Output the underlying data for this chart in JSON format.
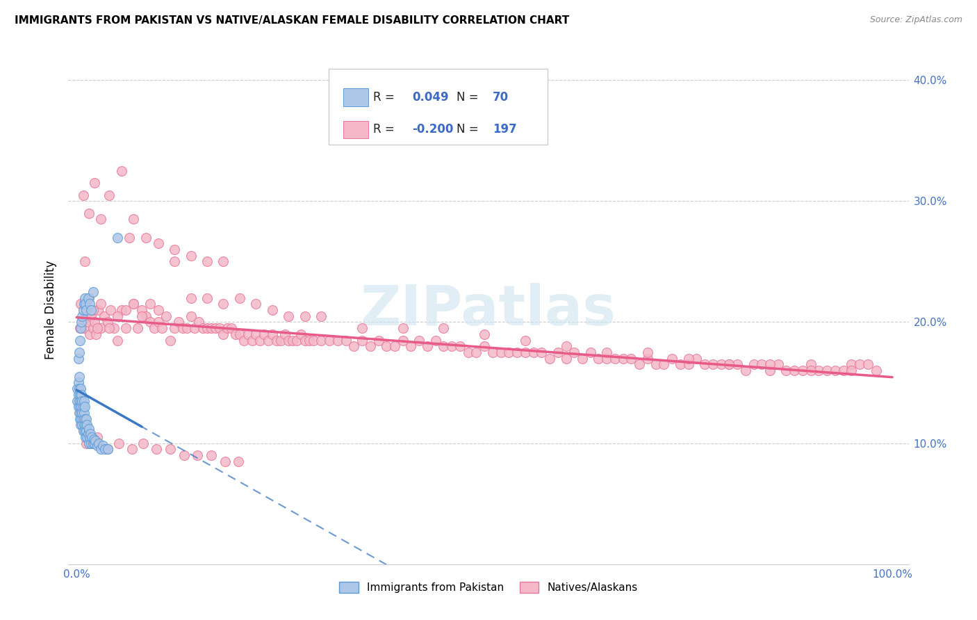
{
  "title": "IMMIGRANTS FROM PAKISTAN VS NATIVE/ALASKAN FEMALE DISABILITY CORRELATION CHART",
  "source": "Source: ZipAtlas.com",
  "ylabel": "Female Disability",
  "xlim": [
    -0.01,
    1.02
  ],
  "ylim": [
    0.0,
    0.42
  ],
  "x_tick_positions": [
    0.0,
    0.1,
    0.2,
    0.3,
    0.4,
    0.5,
    0.6,
    0.7,
    0.8,
    0.9,
    1.0
  ],
  "x_tick_labels": [
    "0.0%",
    "",
    "",
    "",
    "",
    "",
    "",
    "",
    "",
    "",
    "100.0%"
  ],
  "y_tick_positions": [
    0.1,
    0.2,
    0.3,
    0.4
  ],
  "y_tick_labels": [
    "10.0%",
    "20.0%",
    "30.0%",
    "40.0%"
  ],
  "blue_R": 0.049,
  "blue_N": 70,
  "pink_R": -0.2,
  "pink_N": 197,
  "blue_color": "#aec6e8",
  "pink_color": "#f4b8c8",
  "blue_edge_color": "#5b9bd5",
  "pink_edge_color": "#e8789a",
  "blue_line_color": "#3b78c4",
  "pink_line_color": "#e85a8a",
  "legend_label_blue": "Immigrants from Pakistan",
  "legend_label_pink": "Natives/Alaskans",
  "watermark": "ZIPatlas",
  "blue_scatter_x": [
    0.001,
    0.001,
    0.002,
    0.002,
    0.002,
    0.003,
    0.003,
    0.003,
    0.003,
    0.004,
    0.004,
    0.004,
    0.005,
    0.005,
    0.005,
    0.005,
    0.006,
    0.006,
    0.006,
    0.007,
    0.007,
    0.007,
    0.008,
    0.008,
    0.008,
    0.009,
    0.009,
    0.009,
    0.01,
    0.01,
    0.01,
    0.011,
    0.011,
    0.012,
    0.012,
    0.013,
    0.013,
    0.014,
    0.015,
    0.015,
    0.016,
    0.017,
    0.018,
    0.019,
    0.02,
    0.021,
    0.022,
    0.023,
    0.025,
    0.027,
    0.03,
    0.032,
    0.035,
    0.038,
    0.002,
    0.003,
    0.004,
    0.005,
    0.006,
    0.007,
    0.008,
    0.009,
    0.01,
    0.011,
    0.012,
    0.014,
    0.016,
    0.018,
    0.02,
    0.05
  ],
  "blue_scatter_y": [
    0.135,
    0.145,
    0.13,
    0.14,
    0.15,
    0.125,
    0.135,
    0.145,
    0.155,
    0.12,
    0.13,
    0.14,
    0.115,
    0.125,
    0.135,
    0.145,
    0.12,
    0.13,
    0.14,
    0.115,
    0.125,
    0.135,
    0.11,
    0.12,
    0.13,
    0.115,
    0.125,
    0.135,
    0.11,
    0.12,
    0.13,
    0.105,
    0.115,
    0.11,
    0.12,
    0.105,
    0.115,
    0.108,
    0.1,
    0.112,
    0.105,
    0.108,
    0.1,
    0.105,
    0.1,
    0.103,
    0.1,
    0.102,
    0.098,
    0.1,
    0.095,
    0.098,
    0.095,
    0.095,
    0.17,
    0.175,
    0.185,
    0.195,
    0.2,
    0.205,
    0.21,
    0.215,
    0.22,
    0.215,
    0.21,
    0.22,
    0.215,
    0.21,
    0.225,
    0.27
  ],
  "pink_scatter_x": [
    0.004,
    0.006,
    0.008,
    0.01,
    0.012,
    0.014,
    0.016,
    0.018,
    0.02,
    0.022,
    0.024,
    0.026,
    0.03,
    0.034,
    0.038,
    0.042,
    0.046,
    0.05,
    0.055,
    0.06,
    0.065,
    0.07,
    0.075,
    0.08,
    0.085,
    0.09,
    0.095,
    0.1,
    0.105,
    0.11,
    0.115,
    0.12,
    0.125,
    0.13,
    0.135,
    0.14,
    0.145,
    0.15,
    0.155,
    0.16,
    0.165,
    0.17,
    0.175,
    0.18,
    0.185,
    0.19,
    0.195,
    0.2,
    0.205,
    0.21,
    0.215,
    0.22,
    0.225,
    0.23,
    0.235,
    0.24,
    0.245,
    0.25,
    0.255,
    0.26,
    0.265,
    0.27,
    0.275,
    0.28,
    0.285,
    0.29,
    0.3,
    0.31,
    0.32,
    0.33,
    0.34,
    0.35,
    0.36,
    0.37,
    0.38,
    0.39,
    0.4,
    0.41,
    0.42,
    0.43,
    0.44,
    0.45,
    0.46,
    0.47,
    0.48,
    0.49,
    0.5,
    0.51,
    0.52,
    0.53,
    0.54,
    0.55,
    0.56,
    0.57,
    0.58,
    0.59,
    0.6,
    0.61,
    0.62,
    0.63,
    0.64,
    0.65,
    0.66,
    0.67,
    0.68,
    0.69,
    0.7,
    0.71,
    0.72,
    0.73,
    0.74,
    0.75,
    0.76,
    0.77,
    0.78,
    0.79,
    0.8,
    0.81,
    0.82,
    0.83,
    0.84,
    0.85,
    0.86,
    0.87,
    0.88,
    0.89,
    0.9,
    0.91,
    0.92,
    0.93,
    0.94,
    0.95,
    0.96,
    0.97,
    0.98,
    0.005,
    0.01,
    0.015,
    0.02,
    0.025,
    0.03,
    0.04,
    0.05,
    0.06,
    0.07,
    0.08,
    0.09,
    0.1,
    0.12,
    0.14,
    0.16,
    0.18,
    0.2,
    0.22,
    0.24,
    0.26,
    0.28,
    0.3,
    0.35,
    0.4,
    0.45,
    0.5,
    0.55,
    0.6,
    0.65,
    0.7,
    0.75,
    0.8,
    0.85,
    0.9,
    0.95,
    0.008,
    0.015,
    0.022,
    0.03,
    0.04,
    0.055,
    0.07,
    0.085,
    0.1,
    0.12,
    0.14,
    0.16,
    0.18,
    0.012,
    0.025,
    0.038,
    0.052,
    0.068,
    0.082,
    0.098,
    0.115,
    0.132,
    0.148,
    0.165,
    0.182,
    0.198
  ],
  "pink_scatter_y": [
    0.195,
    0.195,
    0.2,
    0.195,
    0.205,
    0.2,
    0.19,
    0.205,
    0.195,
    0.2,
    0.19,
    0.21,
    0.195,
    0.205,
    0.2,
    0.21,
    0.195,
    0.185,
    0.21,
    0.195,
    0.27,
    0.215,
    0.195,
    0.21,
    0.205,
    0.2,
    0.195,
    0.2,
    0.195,
    0.205,
    0.185,
    0.195,
    0.2,
    0.195,
    0.195,
    0.205,
    0.195,
    0.2,
    0.195,
    0.195,
    0.195,
    0.195,
    0.195,
    0.19,
    0.195,
    0.195,
    0.19,
    0.19,
    0.185,
    0.19,
    0.185,
    0.19,
    0.185,
    0.19,
    0.185,
    0.19,
    0.185,
    0.185,
    0.19,
    0.185,
    0.185,
    0.185,
    0.19,
    0.185,
    0.185,
    0.185,
    0.185,
    0.185,
    0.185,
    0.185,
    0.18,
    0.185,
    0.18,
    0.185,
    0.18,
    0.18,
    0.185,
    0.18,
    0.185,
    0.18,
    0.185,
    0.18,
    0.18,
    0.18,
    0.175,
    0.175,
    0.18,
    0.175,
    0.175,
    0.175,
    0.175,
    0.175,
    0.175,
    0.175,
    0.17,
    0.175,
    0.17,
    0.175,
    0.17,
    0.175,
    0.17,
    0.17,
    0.17,
    0.17,
    0.17,
    0.165,
    0.17,
    0.165,
    0.165,
    0.17,
    0.165,
    0.165,
    0.17,
    0.165,
    0.165,
    0.165,
    0.165,
    0.165,
    0.16,
    0.165,
    0.165,
    0.16,
    0.165,
    0.16,
    0.16,
    0.16,
    0.165,
    0.16,
    0.16,
    0.16,
    0.16,
    0.165,
    0.165,
    0.165,
    0.16,
    0.215,
    0.25,
    0.22,
    0.21,
    0.195,
    0.215,
    0.195,
    0.205,
    0.21,
    0.215,
    0.205,
    0.215,
    0.21,
    0.25,
    0.22,
    0.22,
    0.215,
    0.22,
    0.215,
    0.21,
    0.205,
    0.205,
    0.205,
    0.195,
    0.195,
    0.195,
    0.19,
    0.185,
    0.18,
    0.175,
    0.175,
    0.17,
    0.165,
    0.165,
    0.16,
    0.16,
    0.305,
    0.29,
    0.315,
    0.285,
    0.305,
    0.325,
    0.285,
    0.27,
    0.265,
    0.26,
    0.255,
    0.25,
    0.25,
    0.1,
    0.105,
    0.095,
    0.1,
    0.095,
    0.1,
    0.095,
    0.095,
    0.09,
    0.09,
    0.09,
    0.085,
    0.085
  ]
}
